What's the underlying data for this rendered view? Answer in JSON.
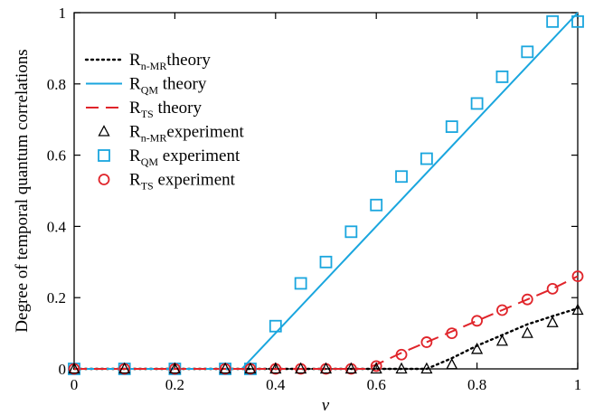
{
  "chart_data": {
    "type": "line",
    "title": "",
    "xlabel": "v",
    "ylabel": "Degree of temporal quantum correlations",
    "xlim": [
      0,
      1
    ],
    "ylim": [
      0,
      1
    ],
    "xticks": [
      0,
      0.2,
      0.4,
      0.6,
      0.8,
      1
    ],
    "yticks": [
      0,
      0.2,
      0.4,
      0.6,
      0.8,
      1
    ],
    "xtick_labels": [
      "0",
      "0.2",
      "0.4",
      "0.6",
      "0.8",
      "1"
    ],
    "ytick_labels": [
      "0",
      "0.2",
      "0.4",
      "0.6",
      "0.8",
      "1"
    ],
    "grid": false,
    "legend_placement": "top-left",
    "series": [
      {
        "name": "R_n-MR theory",
        "legend_base": "R",
        "legend_sub": "n-MR",
        "legend_suffix": "theory",
        "kind": "theory",
        "style": "dotted",
        "color": "#000000",
        "x": [
          0,
          0.7,
          0.75,
          0.8,
          0.85,
          0.9,
          0.95,
          1.0
        ],
        "y": [
          0,
          0,
          0.03,
          0.065,
          0.095,
          0.125,
          0.148,
          0.17
        ]
      },
      {
        "name": "R_QM theory",
        "legend_base": "R",
        "legend_sub": "QM",
        "legend_suffix": "theory",
        "kind": "theory",
        "style": "solid",
        "color": "#1aa6de",
        "x": [
          0,
          0.333,
          1.0
        ],
        "y": [
          0,
          0,
          1.0
        ]
      },
      {
        "name": "R_TS theory",
        "legend_base": "R",
        "legend_sub": "TS",
        "legend_suffix": "theory",
        "kind": "theory",
        "style": "dashed",
        "color": "#e0242a",
        "x": [
          0,
          0.577,
          0.6,
          0.65,
          0.7,
          0.75,
          0.8,
          0.85,
          0.9,
          0.95,
          1.0
        ],
        "y": [
          0,
          0,
          0.012,
          0.045,
          0.075,
          0.105,
          0.135,
          0.165,
          0.195,
          0.225,
          0.26
        ]
      },
      {
        "name": "R_n-MR experiment",
        "legend_base": "R",
        "legend_sub": "n-MR",
        "legend_suffix": "experiment",
        "kind": "experiment",
        "marker": "triangle",
        "color": "#000000",
        "x": [
          0,
          0.1,
          0.2,
          0.3,
          0.35,
          0.4,
          0.45,
          0.5,
          0.55,
          0.6,
          0.65,
          0.7,
          0.75,
          0.8,
          0.85,
          0.9,
          0.95,
          1.0
        ],
        "y": [
          0,
          0,
          0,
          0,
          0,
          0,
          0,
          0,
          0,
          0,
          0,
          0,
          0.012,
          0.055,
          0.078,
          0.1,
          0.13,
          0.165
        ]
      },
      {
        "name": "R_QM experiment",
        "legend_base": "R",
        "legend_sub": "QM",
        "legend_suffix": "experiment",
        "kind": "experiment",
        "marker": "square",
        "color": "#1aa6de",
        "x": [
          0,
          0.1,
          0.2,
          0.3,
          0.35,
          0.4,
          0.45,
          0.5,
          0.55,
          0.6,
          0.65,
          0.7,
          0.75,
          0.8,
          0.85,
          0.9,
          0.95,
          1.0
        ],
        "y": [
          0,
          0,
          0,
          0,
          0,
          0.12,
          0.24,
          0.3,
          0.385,
          0.46,
          0.54,
          0.59,
          0.68,
          0.745,
          0.82,
          0.89,
          0.975,
          0.975
        ]
      },
      {
        "name": "R_TS experiment",
        "legend_base": "R",
        "legend_sub": "TS",
        "legend_suffix": "experiment",
        "kind": "experiment",
        "marker": "circle",
        "color": "#e0242a",
        "x": [
          0,
          0.1,
          0.2,
          0.3,
          0.35,
          0.4,
          0.45,
          0.5,
          0.55,
          0.6,
          0.65,
          0.7,
          0.75,
          0.8,
          0.85,
          0.9,
          0.95,
          1.0
        ],
        "y": [
          0,
          0,
          0,
          0,
          0,
          0,
          0,
          0,
          0,
          0.008,
          0.04,
          0.075,
          0.1,
          0.135,
          0.165,
          0.195,
          0.225,
          0.26
        ]
      }
    ]
  }
}
